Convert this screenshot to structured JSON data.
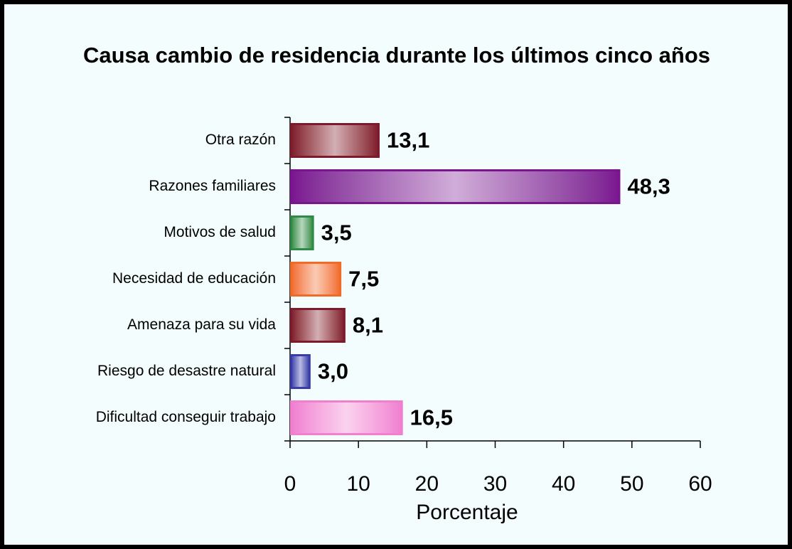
{
  "chart_data": {
    "type": "bar",
    "orientation": "horizontal",
    "title": "Causa cambio de residencia durante los últimos cinco años",
    "categories": [
      "Otra razón",
      "Razones familiares",
      "Motivos de salud",
      "Necesidad de educación",
      "Amenaza para su vida",
      "Riesgo de desastre natural",
      "Dificultad conseguir trabajo"
    ],
    "values": [
      13.1,
      48.3,
      3.5,
      7.5,
      8.1,
      3.0,
      16.5
    ],
    "value_labels": [
      "13,1",
      "48,3",
      "3,5",
      "7,5",
      "8,1",
      "3,0",
      "16,5"
    ],
    "colors": [
      "#7d1a2c",
      "#7a1590",
      "#2e8b45",
      "#f06a28",
      "#7d1a2c",
      "#3b3ba8",
      "#f07fd0"
    ],
    "xlabel": "Porcentaje",
    "xlim": [
      0,
      60
    ],
    "xticks": [
      0,
      10,
      20,
      30,
      40,
      50,
      60
    ],
    "grid": false
  }
}
